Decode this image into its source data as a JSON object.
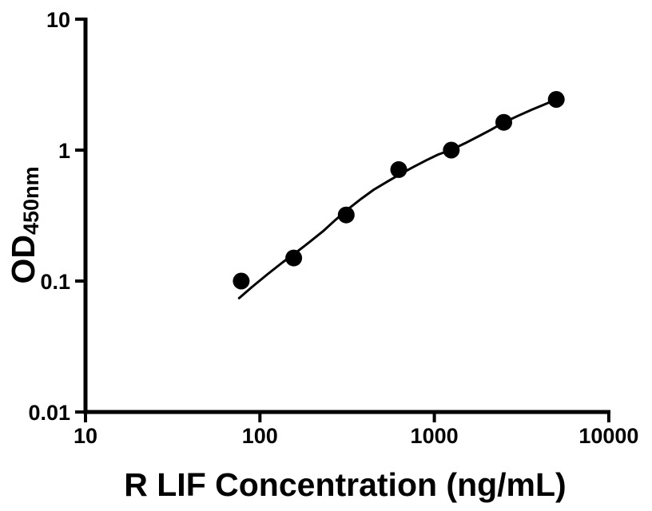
{
  "chart_data": {
    "type": "scatter",
    "title": "",
    "xlabel": "R LIF Concentration (ng/mL)",
    "ylabel": "OD",
    "ylabel_subscript": "450nm",
    "x_scale": "log",
    "y_scale": "log",
    "xlim": [
      10,
      10000
    ],
    "ylim": [
      0.01,
      10
    ],
    "x_ticks": [
      10,
      100,
      1000,
      10000
    ],
    "x_tick_labels": [
      "10",
      "100",
      "1000",
      "10000"
    ],
    "y_ticks": [
      10,
      1,
      0.1,
      0.01
    ],
    "y_tick_labels": [
      "10",
      "1",
      "0.1",
      "0.01"
    ],
    "grid": false,
    "legend": "none",
    "colors": {
      "background": "#ffffff",
      "axes": "#000000",
      "points": "#000000",
      "curve": "#000000"
    },
    "series": [
      {
        "name": "standard-points",
        "type": "scatter",
        "marker": "circle",
        "points": [
          [
            78.125,
            0.1
          ],
          [
            156.25,
            0.15
          ],
          [
            312.5,
            0.32
          ],
          [
            625,
            0.71
          ],
          [
            1250,
            1.0
          ],
          [
            2500,
            1.63
          ],
          [
            5000,
            2.44
          ]
        ]
      },
      {
        "name": "fitted-curve",
        "type": "line",
        "points": [
          [
            76,
            0.074
          ],
          [
            90,
            0.09
          ],
          [
            110,
            0.112
          ],
          [
            135,
            0.139
          ],
          [
            156,
            0.16
          ],
          [
            190,
            0.196
          ],
          [
            230,
            0.24
          ],
          [
            270,
            0.292
          ],
          [
            312,
            0.345
          ],
          [
            380,
            0.424
          ],
          [
            450,
            0.499
          ],
          [
            540,
            0.577
          ],
          [
            625,
            0.645
          ],
          [
            750,
            0.737
          ],
          [
            900,
            0.837
          ],
          [
            1050,
            0.924
          ],
          [
            1250,
            1.005
          ],
          [
            1500,
            1.128
          ],
          [
            1800,
            1.278
          ],
          [
            2100,
            1.425
          ],
          [
            2500,
            1.625
          ],
          [
            3000,
            1.82
          ],
          [
            3600,
            2.03
          ],
          [
            4300,
            2.24
          ],
          [
            5000,
            2.44
          ]
        ]
      }
    ]
  }
}
